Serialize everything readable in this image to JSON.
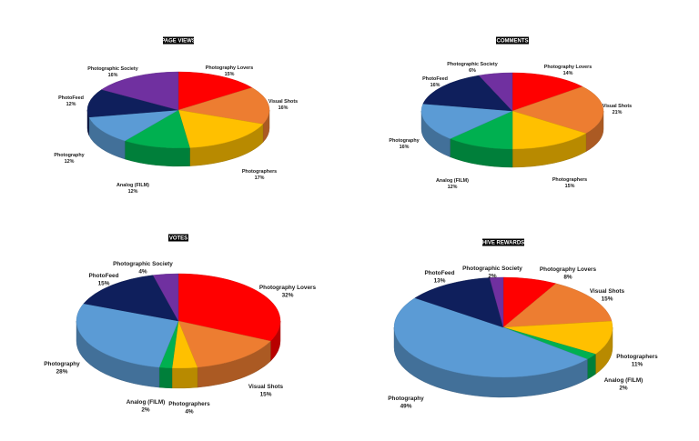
{
  "colors": {
    "Photography Lovers": "#ff0000",
    "Visual Shots": "#ed7d31",
    "Photographers": "#ffc000",
    "Analog (FILM)": "#00b050",
    "Photography": "#5b9bd5",
    "PhotoFeed": "#0f1f5c",
    "Photographic Society": "#7030a0"
  },
  "chart_data": [
    {
      "type": "pie",
      "title": "PAGE VIEWS",
      "categories": [
        "Photography Lovers",
        "Visual Shots",
        "Photographers",
        "Analog (FILM)",
        "Photography",
        "PhotoFeed",
        "Photographic Society"
      ],
      "values": [
        15,
        16,
        17,
        12,
        12,
        12,
        16
      ],
      "value_labels": [
        "15%",
        "16%",
        "17%",
        "12%",
        "12%",
        "12%",
        "16%"
      ]
    },
    {
      "type": "pie",
      "title": "COMMENTS",
      "categories": [
        "Photography Lovers",
        "Visual Shots",
        "Photographers",
        "Analog (FILM)",
        "Photography",
        "PhotoFeed",
        "Photographic Society"
      ],
      "values": [
        14,
        21,
        15,
        12,
        16,
        16,
        6
      ],
      "value_labels": [
        "14%",
        "21%",
        "15%",
        "12%",
        "16%",
        "16%",
        "6%"
      ]
    },
    {
      "type": "pie",
      "title": "VOTES",
      "categories": [
        "Photography Lovers",
        "Visual Shots",
        "Photographers",
        "Analog (FILM)",
        "Photography",
        "PhotoFeed",
        "Photographic Society"
      ],
      "values": [
        32,
        15,
        4,
        2,
        28,
        15,
        4
      ],
      "value_labels": [
        "32%",
        "15%",
        "4%",
        "2%",
        "28%",
        "15%",
        "4%"
      ]
    },
    {
      "type": "pie",
      "title": "HIVE REWARDS",
      "categories": [
        "Photography Lovers",
        "Visual Shots",
        "Photographers",
        "Analog (FILM)",
        "Photography",
        "PhotoFeed",
        "Photographic Society"
      ],
      "values": [
        8,
        15,
        11,
        2,
        49,
        13,
        2
      ],
      "value_labels": [
        "8%",
        "15%",
        "11%",
        "2%",
        "49%",
        "13%",
        "2%"
      ]
    }
  ]
}
